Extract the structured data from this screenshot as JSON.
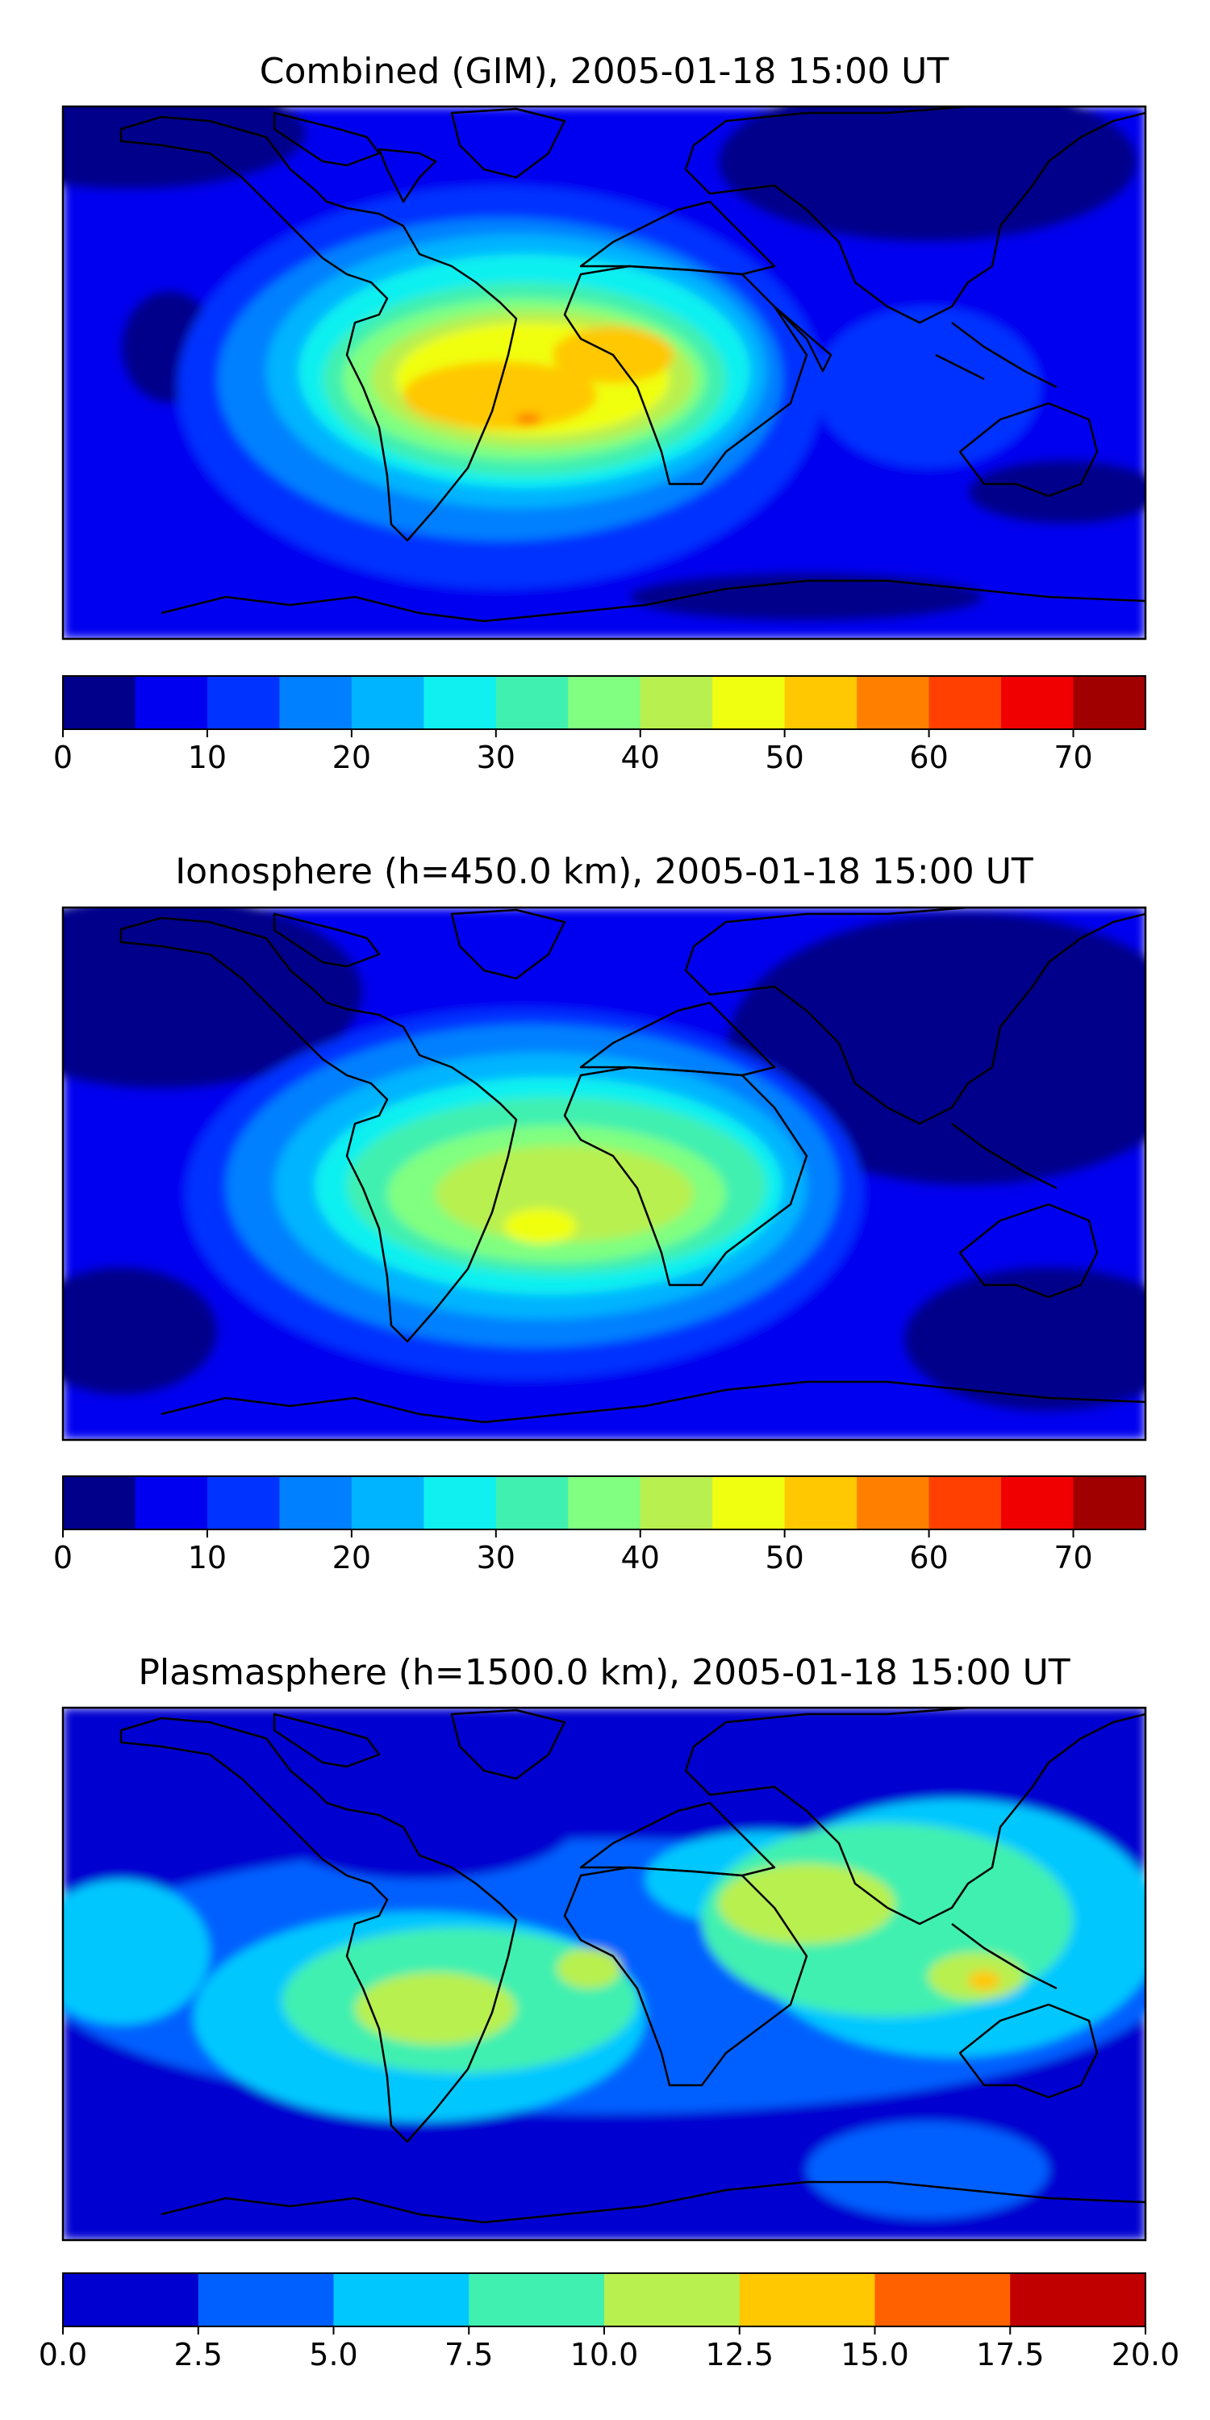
{
  "chart_data": [
    {
      "type": "heatmap",
      "title": "Combined (GIM), 2005-01-18 15:00 UT",
      "xlabel": "",
      "ylabel": "",
      "colorbar": {
        "levels": [
          0,
          5,
          10,
          15,
          20,
          25,
          30,
          35,
          40,
          45,
          50,
          55,
          60,
          65,
          70,
          75
        ],
        "colors": [
          "#00008b",
          "#0000f0",
          "#0033ff",
          "#0080ff",
          "#00b4ff",
          "#10f0f0",
          "#40f0b0",
          "#80ff80",
          "#b8f050",
          "#f0ff10",
          "#ffc800",
          "#ff8000",
          "#ff4000",
          "#f00000",
          "#a00000"
        ],
        "tick_values": [
          0,
          10,
          20,
          30,
          40,
          50,
          60,
          70
        ],
        "tick_labels": [
          "0",
          "10",
          "20",
          "30",
          "40",
          "50",
          "60",
          "70"
        ]
      },
      "features": [
        "coastlines"
      ],
      "peak": {
        "region": "South Atlantic / central South America",
        "value_range": "55-60"
      }
    },
    {
      "type": "heatmap",
      "title": "Ionosphere  (h=450.0 km), 2005-01-18 15:00 UT",
      "xlabel": "",
      "ylabel": "",
      "colorbar": {
        "levels": [
          0,
          5,
          10,
          15,
          20,
          25,
          30,
          35,
          40,
          45,
          50,
          55,
          60,
          65,
          70,
          75
        ],
        "colors": [
          "#00008b",
          "#0000f0",
          "#0033ff",
          "#0080ff",
          "#00b4ff",
          "#10f0f0",
          "#40f0b0",
          "#80ff80",
          "#b8f050",
          "#f0ff10",
          "#ffc800",
          "#ff8000",
          "#ff4000",
          "#f00000",
          "#a00000"
        ],
        "tick_values": [
          0,
          10,
          20,
          30,
          40,
          50,
          60,
          70
        ],
        "tick_labels": [
          "0",
          "10",
          "20",
          "30",
          "40",
          "50",
          "60",
          "70"
        ]
      },
      "features": [
        "coastlines"
      ],
      "peak": {
        "region": "South Atlantic / Africa",
        "value_range": "45-50"
      }
    },
    {
      "type": "heatmap",
      "title": "Plasmasphere (h=1500.0 km), 2005-01-18 15:00 UT",
      "xlabel": "",
      "ylabel": "",
      "colorbar": {
        "levels": [
          0,
          2.5,
          5,
          7.5,
          10,
          12.5,
          15,
          17.5,
          20
        ],
        "colors": [
          "#0000d0",
          "#0060ff",
          "#00c8ff",
          "#40f0b0",
          "#b8f050",
          "#ffc800",
          "#ff6000",
          "#c00000"
        ],
        "tick_values": [
          0,
          2.5,
          5,
          7.5,
          10,
          12.5,
          15,
          17.5,
          20
        ],
        "tick_labels": [
          "0.0",
          "2.5",
          "5.0",
          "7.5",
          "10.0",
          "12.5",
          "15.0",
          "17.5",
          "20.0"
        ]
      },
      "features": [
        "coastlines"
      ],
      "peak": {
        "region": "Maritime Southeast Asia / South America",
        "value_range": "12.5-15"
      }
    }
  ]
}
